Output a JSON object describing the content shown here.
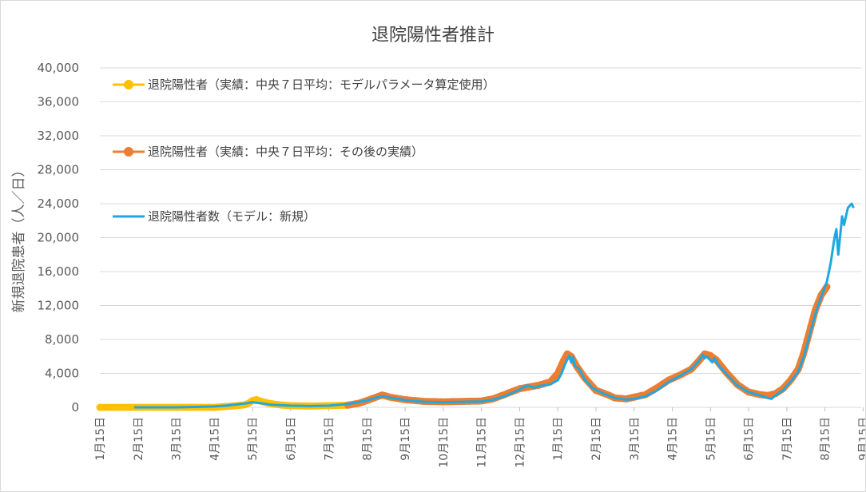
{
  "chart_data": {
    "type": "line",
    "title": "退院陽性者推計",
    "ylabel": "新規退院患者（人／日）",
    "xlabel": "",
    "ylim": [
      0,
      40000
    ],
    "yticks": [
      "0",
      "4,000",
      "8,000",
      "12,000",
      "16,000",
      "20,000",
      "24,000",
      "28,000",
      "32,000",
      "36,000",
      "40,000"
    ],
    "ytick_values": [
      0,
      4000,
      8000,
      12000,
      16000,
      20000,
      24000,
      28000,
      32000,
      36000,
      40000
    ],
    "xticks": [
      "1月15日",
      "2月15日",
      "3月15日",
      "4月15日",
      "5月15日",
      "6月15日",
      "7月15日",
      "8月15日",
      "9月15日",
      "10月15日",
      "11月15日",
      "12月15日",
      "1月15日",
      "2月15日",
      "3月15日",
      "4月15日",
      "5月15日",
      "6月15日",
      "7月15日",
      "8月15日",
      "9月15日"
    ],
    "x_unit": "month index (0 = 1月15日)",
    "grid": true,
    "legend_position": "top-left",
    "series": [
      {
        "name": "退院陽性者（実績：中央７日平均：モデルパラメータ算定使用）",
        "color": "#FFC000",
        "style": "markers",
        "points": [
          [
            0,
            0
          ],
          [
            0.5,
            0
          ],
          [
            1,
            0
          ],
          [
            1.5,
            0
          ],
          [
            2,
            0
          ],
          [
            2.5,
            0
          ],
          [
            3,
            0
          ],
          [
            3.3,
            100
          ],
          [
            3.6,
            200
          ],
          [
            3.8,
            300
          ],
          [
            3.9,
            500
          ],
          [
            4.0,
            800
          ],
          [
            4.1,
            900
          ],
          [
            4.2,
            750
          ],
          [
            4.4,
            500
          ],
          [
            4.6,
            350
          ],
          [
            4.8,
            250
          ],
          [
            5,
            200
          ],
          [
            5.5,
            150
          ],
          [
            6,
            200
          ],
          [
            6.5,
            250
          ]
        ]
      },
      {
        "name": "退院陽性者（実績：中央７日平均：その後の実績）",
        "color": "#ED7D31",
        "style": "markers",
        "points": [
          [
            6.5,
            250
          ],
          [
            6.8,
            500
          ],
          [
            7,
            800
          ],
          [
            7.3,
            1300
          ],
          [
            7.4,
            1450
          ],
          [
            7.6,
            1200
          ],
          [
            8,
            900
          ],
          [
            8.5,
            700
          ],
          [
            9,
            650
          ],
          [
            9.5,
            700
          ],
          [
            10,
            750
          ],
          [
            10.3,
            1000
          ],
          [
            10.6,
            1500
          ],
          [
            11,
            2200
          ],
          [
            11.5,
            2600
          ],
          [
            11.8,
            3000
          ],
          [
            12,
            4000
          ],
          [
            12.15,
            5500
          ],
          [
            12.25,
            6300
          ],
          [
            12.35,
            6000
          ],
          [
            12.5,
            4800
          ],
          [
            12.7,
            3500
          ],
          [
            13,
            2000
          ],
          [
            13.3,
            1500
          ],
          [
            13.5,
            1100
          ],
          [
            13.8,
            1000
          ],
          [
            14,
            1200
          ],
          [
            14.3,
            1500
          ],
          [
            14.6,
            2300
          ],
          [
            14.9,
            3200
          ],
          [
            15.2,
            3800
          ],
          [
            15.5,
            4500
          ],
          [
            15.7,
            5500
          ],
          [
            15.85,
            6300
          ],
          [
            16,
            6100
          ],
          [
            16.15,
            5600
          ],
          [
            16.4,
            4200
          ],
          [
            16.7,
            2700
          ],
          [
            17,
            1800
          ],
          [
            17.3,
            1500
          ],
          [
            17.5,
            1400
          ],
          [
            17.7,
            1600
          ],
          [
            17.9,
            2200
          ],
          [
            18.1,
            3200
          ],
          [
            18.3,
            4500
          ],
          [
            18.45,
            6500
          ],
          [
            18.6,
            9000
          ],
          [
            18.75,
            11500
          ],
          [
            18.9,
            13200
          ],
          [
            19.05,
            14200
          ]
        ]
      },
      {
        "name": "退院陽性者数（モデル：新規）",
        "color": "#1FA8E0",
        "style": "line",
        "points": [
          [
            0.9,
            0
          ],
          [
            1.5,
            0
          ],
          [
            2,
            0
          ],
          [
            2.5,
            50
          ],
          [
            3,
            100
          ],
          [
            3.3,
            200
          ],
          [
            3.6,
            350
          ],
          [
            3.8,
            450
          ],
          [
            4,
            600
          ],
          [
            4.2,
            500
          ],
          [
            4.5,
            300
          ],
          [
            5,
            200
          ],
          [
            5.5,
            150
          ],
          [
            6,
            200
          ],
          [
            6.5,
            400
          ],
          [
            7,
            800
          ],
          [
            7.2,
            1100
          ],
          [
            7.4,
            1300
          ],
          [
            7.6,
            1150
          ],
          [
            8,
            850
          ],
          [
            8.5,
            650
          ],
          [
            9,
            600
          ],
          [
            9.5,
            650
          ],
          [
            10,
            700
          ],
          [
            10.3,
            900
          ],
          [
            10.6,
            1300
          ],
          [
            11,
            2100
          ],
          [
            11.2,
            2600
          ],
          [
            11.4,
            2300
          ],
          [
            11.5,
            2500
          ],
          [
            11.8,
            2700
          ],
          [
            12,
            3200
          ],
          [
            12.1,
            4000
          ],
          [
            12.2,
            5200
          ],
          [
            12.3,
            6100
          ],
          [
            12.35,
            5300
          ],
          [
            12.4,
            5900
          ],
          [
            12.45,
            4800
          ],
          [
            12.55,
            4600
          ],
          [
            12.7,
            3300
          ],
          [
            12.9,
            2300
          ],
          [
            13.2,
            1600
          ],
          [
            13.5,
            1100
          ],
          [
            13.8,
            900
          ],
          [
            14,
            1000
          ],
          [
            14.3,
            1300
          ],
          [
            14.6,
            2000
          ],
          [
            14.9,
            3000
          ],
          [
            15.2,
            3700
          ],
          [
            15.5,
            4500
          ],
          [
            15.7,
            5500
          ],
          [
            15.8,
            6200
          ],
          [
            15.85,
            5800
          ],
          [
            15.9,
            6000
          ],
          [
            16.05,
            5300
          ],
          [
            16.1,
            5800
          ],
          [
            16.2,
            5000
          ],
          [
            16.4,
            4000
          ],
          [
            16.7,
            2600
          ],
          [
            17,
            1800
          ],
          [
            17.3,
            1400
          ],
          [
            17.5,
            1100
          ],
          [
            17.6,
            1000
          ],
          [
            17.7,
            1400
          ],
          [
            17.9,
            2000
          ],
          [
            18.1,
            3000
          ],
          [
            18.3,
            4200
          ],
          [
            18.45,
            6000
          ],
          [
            18.6,
            8500
          ],
          [
            18.75,
            11000
          ],
          [
            18.9,
            13000
          ],
          [
            19.05,
            14800
          ],
          [
            19.15,
            17000
          ],
          [
            19.25,
            20000
          ],
          [
            19.3,
            21000
          ],
          [
            19.35,
            18000
          ],
          [
            19.45,
            22500
          ],
          [
            19.5,
            21500
          ],
          [
            19.6,
            23500
          ],
          [
            19.7,
            24000
          ],
          [
            19.75,
            23500
          ]
        ]
      }
    ]
  }
}
